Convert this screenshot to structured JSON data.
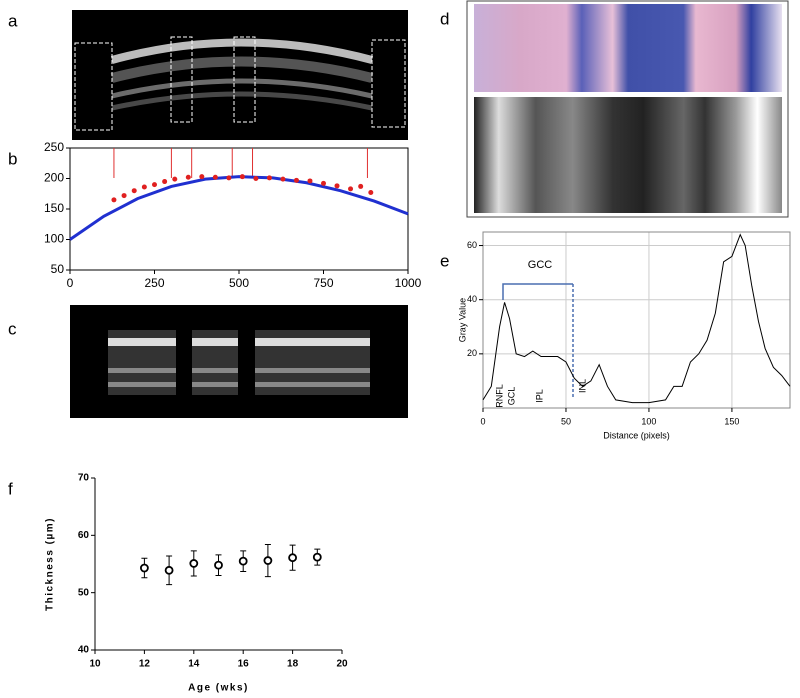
{
  "panel_labels": [
    "a",
    "b",
    "c",
    "d",
    "e",
    "f"
  ],
  "chart_data": [
    {
      "type": "line",
      "xlim": [
        0,
        1000
      ],
      "ylim": [
        50,
        250
      ],
      "xticks": [
        0,
        250,
        500,
        750,
        1000
      ],
      "yticks": [
        50,
        100,
        150,
        200,
        250
      ],
      "vlines": [
        130,
        300,
        360,
        480,
        540,
        880
      ],
      "vline_color": "#e03030",
      "series": [
        {
          "kind": "line",
          "color": "#2030d0",
          "x": [
            0,
            100,
            200,
            300,
            400,
            500,
            600,
            700,
            800,
            900,
            1000
          ],
          "values": [
            100,
            138,
            167,
            187,
            199,
            203,
            201,
            193,
            180,
            163,
            142
          ]
        },
        {
          "kind": "scatter",
          "color": "#e02020",
          "x": [
            130,
            160,
            190,
            220,
            250,
            280,
            310,
            350,
            390,
            430,
            470,
            510,
            550,
            590,
            630,
            670,
            710,
            750,
            790,
            830,
            860,
            890
          ],
          "values": [
            165,
            172,
            180,
            186,
            190,
            195,
            199,
            202,
            203,
            202,
            201,
            203,
            200,
            201,
            199,
            197,
            196,
            192,
            188,
            183,
            187,
            177
          ]
        }
      ]
    },
    {
      "type": "line",
      "xlabel": "Distance (pixels)",
      "ylabel": "Gray Value",
      "xlim": [
        0,
        185
      ],
      "ylim": [
        0,
        65
      ],
      "xticks": [
        0,
        50,
        100,
        150
      ],
      "yticks": [
        20,
        40,
        60
      ],
      "grid": true,
      "annotations": [
        "GCC",
        "RNFL",
        "GCL",
        "IPL",
        "INL"
      ],
      "series": [
        {
          "kind": "line",
          "color": "#000000",
          "x": [
            0,
            5,
            10,
            13,
            16,
            20,
            25,
            30,
            35,
            40,
            45,
            50,
            55,
            60,
            65,
            70,
            75,
            80,
            90,
            100,
            110,
            115,
            120,
            125,
            130,
            135,
            140,
            145,
            150,
            155,
            158,
            162,
            166,
            170,
            175,
            180,
            185
          ],
          "values": [
            3,
            8,
            30,
            39,
            33,
            20,
            19,
            21,
            19,
            19,
            19,
            17,
            11,
            8,
            10,
            16,
            8,
            3,
            2,
            2,
            3,
            8,
            8,
            17,
            20,
            25,
            35,
            54,
            56,
            64,
            60,
            45,
            32,
            22,
            15,
            12,
            8
          ]
        }
      ]
    },
    {
      "type": "errorbar",
      "xlabel": "Age (wks)",
      "ylabel": "Thickness (µm)",
      "xlim": [
        10,
        20
      ],
      "ylim": [
        40,
        70
      ],
      "xticks": [
        10,
        12,
        14,
        16,
        18,
        20
      ],
      "yticks": [
        40,
        50,
        60,
        70
      ],
      "x": [
        12,
        13,
        14,
        15,
        16,
        17,
        18,
        19
      ],
      "values": [
        54.3,
        53.9,
        55.1,
        54.8,
        55.5,
        55.6,
        56.1,
        56.2
      ],
      "errors": [
        1.7,
        2.5,
        2.2,
        1.8,
        1.8,
        2.8,
        2.2,
        1.4
      ]
    }
  ]
}
